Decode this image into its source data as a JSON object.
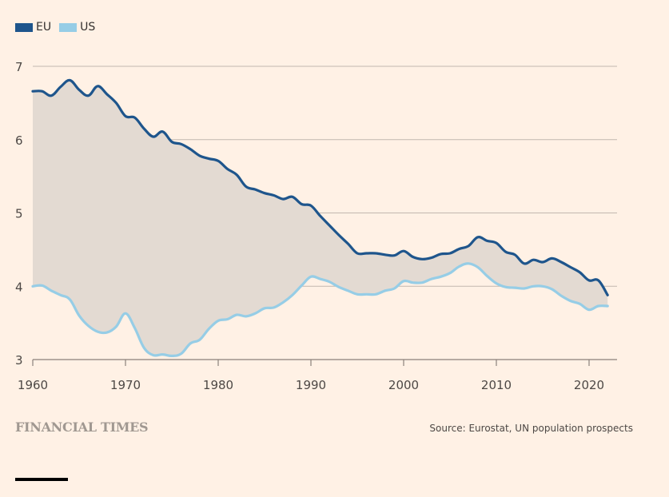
{
  "legend": [
    {
      "label": "EU",
      "color": "#1e558c"
    },
    {
      "label": "US",
      "color": "#96cde6"
    }
  ],
  "footer": {
    "publisher": "FINANCIAL TIMES",
    "source": "Source: Eurostat, UN population prospects"
  },
  "chart_data": {
    "type": "line",
    "title": "",
    "xlabel": "",
    "ylabel": "",
    "xlim": [
      1960,
      2023
    ],
    "ylim": [
      3,
      7
    ],
    "grid": true,
    "legend_position": "top-left",
    "fill_between_series": true,
    "fill_color": "#e3dad2",
    "x_ticks": [
      1960,
      1970,
      1980,
      1990,
      2000,
      2010,
      2020
    ],
    "y_ticks": [
      3,
      4,
      5,
      6,
      7
    ],
    "x": [
      1960,
      1961,
      1962,
      1963,
      1964,
      1965,
      1966,
      1967,
      1968,
      1969,
      1970,
      1971,
      1972,
      1973,
      1974,
      1975,
      1976,
      1977,
      1978,
      1979,
      1980,
      1981,
      1982,
      1983,
      1984,
      1985,
      1986,
      1987,
      1988,
      1989,
      1990,
      1991,
      1992,
      1993,
      1994,
      1995,
      1996,
      1997,
      1998,
      1999,
      2000,
      2001,
      2002,
      2003,
      2004,
      2005,
      2006,
      2007,
      2008,
      2009,
      2010,
      2011,
      2012,
      2013,
      2014,
      2015,
      2016,
      2017,
      2018,
      2019,
      2020,
      2021,
      2022
    ],
    "series": [
      {
        "name": "EU",
        "color": "#1e558c",
        "values": [
          6.66,
          6.66,
          6.6,
          6.72,
          6.81,
          6.68,
          6.6,
          6.73,
          6.62,
          6.5,
          6.32,
          6.3,
          6.15,
          6.04,
          6.11,
          5.97,
          5.94,
          5.87,
          5.78,
          5.74,
          5.71,
          5.6,
          5.52,
          5.36,
          5.32,
          5.27,
          5.24,
          5.19,
          5.22,
          5.12,
          5.1,
          4.96,
          4.83,
          4.7,
          4.58,
          4.45,
          4.45,
          4.45,
          4.43,
          4.42,
          4.48,
          4.4,
          4.37,
          4.39,
          4.44,
          4.45,
          4.51,
          4.55,
          4.67,
          4.62,
          4.59,
          4.47,
          4.43,
          4.31,
          4.36,
          4.33,
          4.38,
          4.33,
          4.26,
          4.19,
          4.08,
          4.08,
          3.88
        ]
      },
      {
        "name": "US",
        "color": "#96cde6",
        "values": [
          4.0,
          4.01,
          3.94,
          3.88,
          3.82,
          3.6,
          3.46,
          3.38,
          3.37,
          3.45,
          3.63,
          3.43,
          3.16,
          3.06,
          3.07,
          3.05,
          3.08,
          3.22,
          3.27,
          3.42,
          3.53,
          3.55,
          3.61,
          3.59,
          3.63,
          3.7,
          3.71,
          3.78,
          3.88,
          4.01,
          4.13,
          4.1,
          4.06,
          3.99,
          3.94,
          3.89,
          3.89,
          3.89,
          3.94,
          3.97,
          4.07,
          4.05,
          4.05,
          4.1,
          4.13,
          4.18,
          4.27,
          4.31,
          4.26,
          4.14,
          4.04,
          3.99,
          3.98,
          3.97,
          4.0,
          4.0,
          3.96,
          3.87,
          3.8,
          3.76,
          3.68,
          3.73,
          3.73
        ]
      }
    ]
  }
}
